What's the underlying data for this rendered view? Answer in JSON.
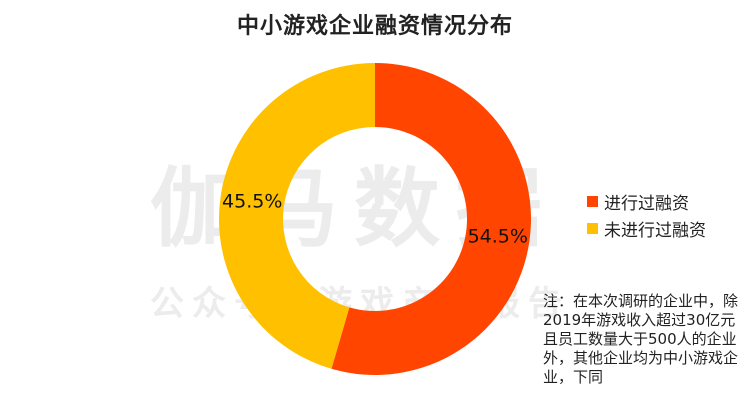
{
  "title": "中小游戏企业融资情况分布",
  "watermark": {
    "main": "伽马数据",
    "sub": "公众号：游戏产业报告"
  },
  "note": "注：在本次调研的企业中，除2019年游戏收入超过30亿元且员工数量大于500人的企业外，其他企业均为中小游戏企业，下同",
  "chart_data": {
    "type": "pie",
    "donut": true,
    "title": "中小游戏企业融资情况分布",
    "legend": "right",
    "start_angle_deg": 0,
    "direction": "clockwise",
    "slices": [
      {
        "name": "进行过融资",
        "value": 54.5,
        "label": "54.5%",
        "color": "#FF4500"
      },
      {
        "name": "未进行过融资",
        "value": 45.5,
        "label": "45.5%",
        "color": "#FFC000"
      }
    ]
  }
}
